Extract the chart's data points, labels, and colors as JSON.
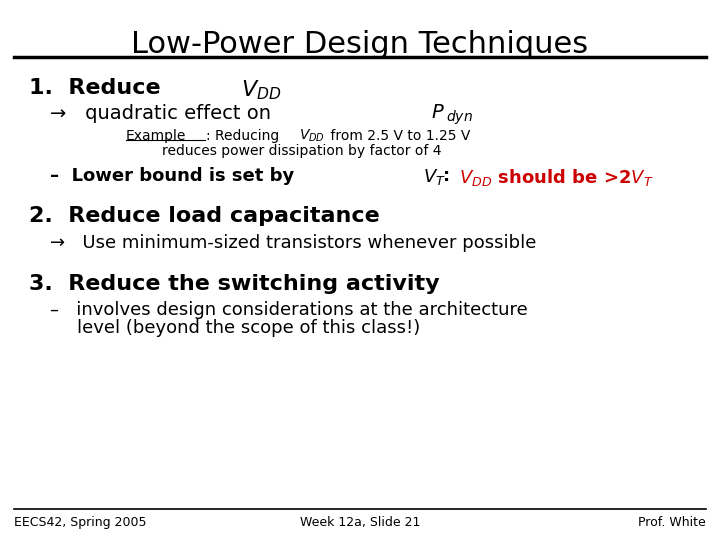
{
  "title": "Low-Power Design Techniques",
  "background_color": "#ffffff",
  "title_fontsize": 22,
  "footer_left": "EECS42, Spring 2005",
  "footer_center": "Week 12a, Slide 21",
  "footer_right": "Prof. White",
  "footer_fontsize": 9,
  "red_color": "#cc0000",
  "text_color": "#000000"
}
